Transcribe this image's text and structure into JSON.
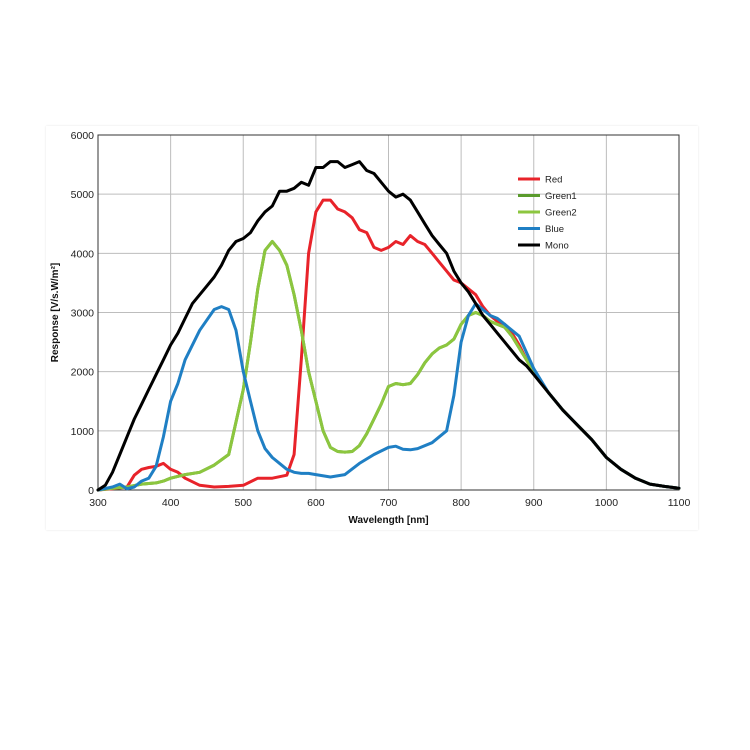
{
  "chart_data": {
    "type": "line",
    "xlabel": "Wavelength [nm]",
    "ylabel": "Response [V/s.W/m²]",
    "xlim": [
      300,
      1100
    ],
    "ylim": [
      0,
      6000
    ],
    "xticks": [
      300,
      400,
      500,
      600,
      700,
      800,
      900,
      1000,
      1100
    ],
    "yticks": [
      0,
      1000,
      2000,
      3000,
      4000,
      5000,
      6000
    ],
    "grid": true,
    "legend_position": "top-right",
    "series": [
      {
        "name": "Red",
        "color": "#e8232a",
        "x": [
          300,
          320,
          340,
          350,
          360,
          370,
          380,
          390,
          400,
          410,
          420,
          440,
          460,
          480,
          500,
          520,
          540,
          560,
          570,
          580,
          590,
          600,
          610,
          620,
          630,
          640,
          650,
          660,
          670,
          680,
          690,
          700,
          710,
          720,
          730,
          740,
          750,
          760,
          770,
          780,
          790,
          800,
          810,
          820,
          830,
          840,
          850,
          860,
          870,
          880,
          890,
          900,
          920,
          940,
          960,
          980,
          1000,
          1020,
          1040,
          1060,
          1080,
          1100
        ],
        "y": [
          0,
          20,
          50,
          250,
          350,
          380,
          400,
          450,
          350,
          300,
          200,
          80,
          50,
          60,
          80,
          200,
          200,
          250,
          600,
          2200,
          4000,
          4700,
          4900,
          4900,
          4750,
          4700,
          4600,
          4400,
          4350,
          4100,
          4050,
          4100,
          4200,
          4150,
          4300,
          4200,
          4150,
          4000,
          3850,
          3700,
          3550,
          3500,
          3400,
          3300,
          3100,
          2950,
          2850,
          2800,
          2650,
          2450,
          2200,
          2000,
          1650,
          1350,
          1100,
          850,
          550,
          350,
          200,
          100,
          60,
          30
        ]
      },
      {
        "name": "Green1",
        "color": "#5a9b2c",
        "x": [
          300,
          320,
          340,
          360,
          380,
          390,
          400,
          420,
          440,
          460,
          480,
          500,
          510,
          520,
          530,
          540,
          550,
          560,
          570,
          580,
          590,
          600,
          610,
          620,
          630,
          640,
          650,
          660,
          670,
          680,
          690,
          700,
          710,
          720,
          730,
          740,
          750,
          760,
          770,
          780,
          790,
          800,
          810,
          820,
          830,
          840,
          850,
          860,
          870,
          880,
          890,
          900,
          920,
          940,
          960,
          980,
          1000,
          1020,
          1040,
          1060,
          1080,
          1100
        ],
        "y": [
          0,
          30,
          50,
          100,
          120,
          150,
          200,
          260,
          300,
          420,
          600,
          1700,
          2500,
          3400,
          4050,
          4200,
          4050,
          3800,
          3300,
          2700,
          2000,
          1500,
          1000,
          720,
          650,
          640,
          650,
          750,
          950,
          1200,
          1450,
          1750,
          1800,
          1780,
          1800,
          1950,
          2150,
          2300,
          2400,
          2450,
          2550,
          2800,
          2950,
          3000,
          2950,
          2850,
          2800,
          2750,
          2600,
          2400,
          2200,
          2000,
          1650,
          1350,
          1100,
          850,
          550,
          350,
          200,
          100,
          60,
          30
        ]
      },
      {
        "name": "Green2",
        "color": "#8cc63f",
        "x": [
          300,
          320,
          340,
          360,
          380,
          390,
          400,
          420,
          440,
          460,
          480,
          500,
          510,
          520,
          530,
          540,
          550,
          560,
          570,
          580,
          590,
          600,
          610,
          620,
          630,
          640,
          650,
          660,
          670,
          680,
          690,
          700,
          710,
          720,
          730,
          740,
          750,
          760,
          770,
          780,
          790,
          800,
          810,
          820,
          830,
          840,
          850,
          860,
          870,
          880,
          890,
          900,
          920,
          940,
          960,
          980,
          1000,
          1020,
          1040,
          1060,
          1080,
          1100
        ],
        "y": [
          0,
          30,
          50,
          100,
          120,
          150,
          200,
          260,
          300,
          420,
          600,
          1700,
          2500,
          3400,
          4050,
          4200,
          4050,
          3800,
          3300,
          2700,
          2000,
          1500,
          1000,
          720,
          650,
          640,
          650,
          750,
          950,
          1200,
          1450,
          1750,
          1800,
          1780,
          1800,
          1950,
          2150,
          2300,
          2400,
          2450,
          2550,
          2800,
          2950,
          3000,
          2950,
          2850,
          2800,
          2750,
          2600,
          2400,
          2200,
          2000,
          1650,
          1350,
          1100,
          850,
          550,
          350,
          200,
          100,
          60,
          30
        ]
      },
      {
        "name": "Blue",
        "color": "#1f7fc4",
        "x": [
          300,
          320,
          330,
          340,
          350,
          360,
          370,
          380,
          390,
          400,
          410,
          420,
          440,
          460,
          470,
          480,
          490,
          500,
          510,
          520,
          530,
          540,
          550,
          560,
          570,
          580,
          590,
          600,
          620,
          640,
          660,
          680,
          700,
          710,
          720,
          730,
          740,
          760,
          780,
          790,
          800,
          810,
          820,
          830,
          840,
          850,
          860,
          880,
          900,
          920,
          940,
          960,
          980,
          1000,
          1020,
          1040,
          1060,
          1080,
          1100
        ],
        "y": [
          0,
          50,
          100,
          20,
          50,
          150,
          200,
          400,
          900,
          1500,
          1800,
          2200,
          2700,
          3050,
          3100,
          3050,
          2700,
          2000,
          1500,
          1000,
          700,
          550,
          450,
          350,
          300,
          280,
          280,
          260,
          220,
          260,
          450,
          600,
          720,
          740,
          690,
          680,
          700,
          800,
          1000,
          1600,
          2500,
          2950,
          3150,
          3050,
          2950,
          2900,
          2800,
          2600,
          2050,
          1650,
          1350,
          1100,
          850,
          550,
          350,
          200,
          100,
          60,
          30
        ]
      },
      {
        "name": "Mono",
        "color": "#000000",
        "x": [
          300,
          310,
          320,
          330,
          340,
          350,
          360,
          370,
          380,
          390,
          400,
          410,
          420,
          430,
          440,
          450,
          460,
          470,
          480,
          490,
          500,
          510,
          520,
          530,
          540,
          550,
          560,
          570,
          580,
          590,
          600,
          610,
          620,
          630,
          640,
          650,
          660,
          670,
          680,
          690,
          700,
          710,
          720,
          730,
          740,
          750,
          760,
          770,
          780,
          790,
          800,
          810,
          820,
          830,
          840,
          850,
          860,
          870,
          880,
          890,
          900,
          920,
          940,
          960,
          980,
          1000,
          1020,
          1040,
          1060,
          1080,
          1100
        ],
        "y": [
          0,
          80,
          300,
          600,
          900,
          1200,
          1450,
          1700,
          1950,
          2200,
          2450,
          2650,
          2900,
          3150,
          3300,
          3450,
          3600,
          3800,
          4050,
          4200,
          4250,
          4350,
          4550,
          4700,
          4800,
          5050,
          5050,
          5100,
          5200,
          5150,
          5450,
          5450,
          5550,
          5550,
          5450,
          5500,
          5550,
          5400,
          5350,
          5200,
          5050,
          4950,
          5000,
          4900,
          4700,
          4500,
          4300,
          4150,
          4000,
          3700,
          3500,
          3350,
          3150,
          2950,
          2800,
          2650,
          2500,
          2350,
          2200,
          2100,
          1950,
          1650,
          1350,
          1100,
          850,
          550,
          350,
          200,
          100,
          60,
          30
        ]
      }
    ]
  }
}
